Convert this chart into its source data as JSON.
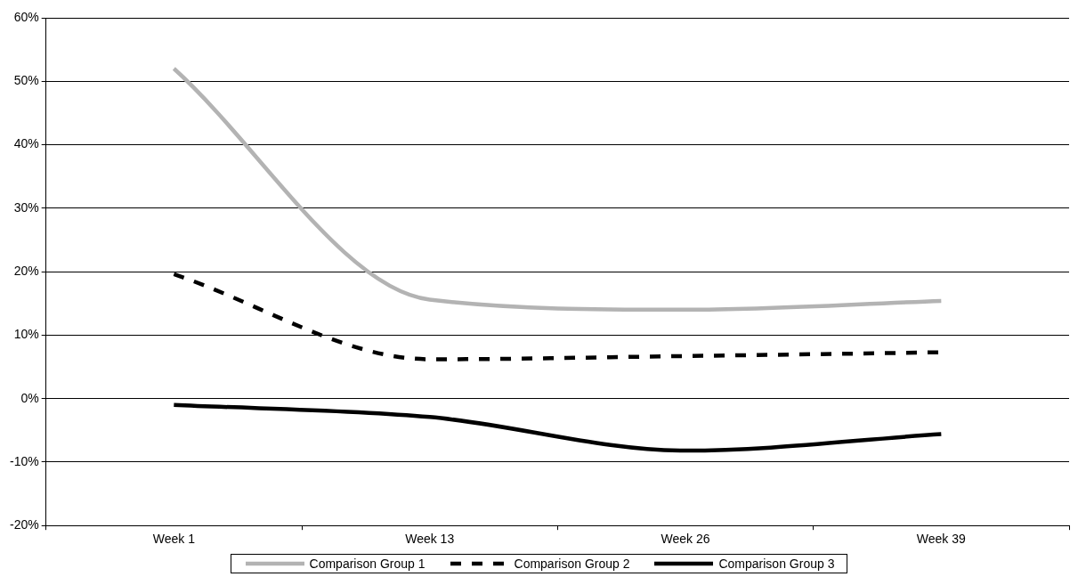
{
  "chart_data": {
    "type": "line",
    "categories": [
      "Week 1",
      "Week 13",
      "Week 26",
      "Week 39"
    ],
    "series": [
      {
        "name": "Comparison Group 1",
        "color": "#b3b3b3",
        "line_style": "solid",
        "values": [
          52,
          15.6,
          14,
          15.4
        ]
      },
      {
        "name": "Comparison Group 2",
        "color": "#000000",
        "line_style": "dashed",
        "values": [
          19.6,
          6.2,
          6.7,
          7.3
        ]
      },
      {
        "name": "Comparison Group 3",
        "color": "#000000",
        "line_style": "solid",
        "values": [
          -1,
          -2.9,
          -8.2,
          -5.6
        ]
      }
    ],
    "ylim": [
      -20,
      60
    ],
    "yticks": [
      {
        "value": -20,
        "label": "-20%"
      },
      {
        "value": -10,
        "label": "-10%"
      },
      {
        "value": 0,
        "label": "0%"
      },
      {
        "value": 10,
        "label": "10%"
      },
      {
        "value": 20,
        "label": "20%"
      },
      {
        "value": 30,
        "label": "30%"
      },
      {
        "value": 40,
        "label": "40%"
      },
      {
        "value": 50,
        "label": "50%"
      },
      {
        "value": 60,
        "label": "60%"
      }
    ],
    "grid": "y",
    "legend": "bottom",
    "marker": "none"
  }
}
